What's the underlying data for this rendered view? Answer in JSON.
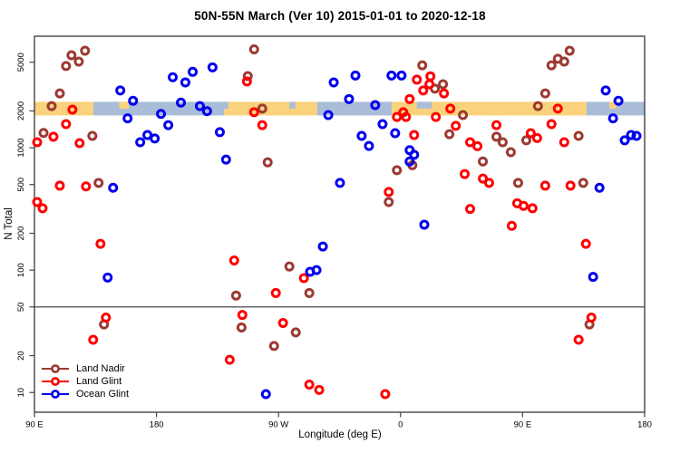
{
  "chart_data": {
    "type": "scatter",
    "title": "50N-55N March (Ver 10)   2015-01-01 to 2020-12-18",
    "xlabel": "Longitude (deg E)",
    "ylabel": "N Total",
    "x_axis": {
      "range": [
        90,
        540
      ],
      "ticks": [
        90,
        180,
        270,
        360,
        450,
        540
      ],
      "tick_labels": [
        "90 E",
        "180",
        "90 W",
        "0",
        "90 E",
        "180"
      ],
      "note": "longitude axis spans 450 degrees eastward from 90E through 180, 90W, 0, 90E to 180"
    },
    "y_axis": {
      "scale": "log",
      "range": [
        6.9,
        8150
      ],
      "ticks": [
        10,
        20,
        50,
        100,
        200,
        500,
        1000,
        2000,
        5000
      ],
      "tick_labels": [
        "10",
        "20",
        "50",
        "100",
        "200",
        "500",
        "1000",
        "2000",
        "5000"
      ]
    },
    "grid": false,
    "reference_line_y": 50,
    "land_ocean_strip": {
      "center_value": 2000,
      "land_color": "#FAD27B",
      "ocean_color": "#A9BDD9",
      "segments": [
        {
          "from": 90,
          "to": 133.5,
          "type": "land"
        },
        {
          "from": 133.5,
          "to": 230,
          "type": "ocean"
        },
        {
          "from": 230,
          "to": 298.5,
          "type": "land"
        },
        {
          "from": 298.5,
          "to": 353.5,
          "type": "ocean"
        },
        {
          "from": 353.5,
          "to": 497,
          "type": "land"
        },
        {
          "from": 497,
          "to": 540,
          "type": "ocean"
        }
      ],
      "patches": [
        {
          "from": 152.5,
          "to": 159.5,
          "type": "land",
          "half": "top"
        },
        {
          "from": 514,
          "to": 519,
          "type": "land",
          "half": "top"
        },
        {
          "from": 372,
          "to": 383,
          "type": "ocean",
          "half": "top"
        },
        {
          "from": 278,
          "to": 282.5,
          "type": "ocean",
          "half": "top"
        },
        {
          "from": 227,
          "to": 233,
          "type": "ocean",
          "half": "top"
        }
      ]
    },
    "legend_position": "bottom-left",
    "series": [
      {
        "name": "Land Nadir",
        "color": "#9C3A32",
        "points": [
          [
            117.3,
            5700
          ],
          [
            127.3,
            6200
          ],
          [
            122.7,
            5060
          ],
          [
            113.3,
            4650
          ],
          [
            108.7,
            2780
          ],
          [
            102.7,
            2190
          ],
          [
            96.7,
            1320
          ],
          [
            132.7,
            1250
          ],
          [
            137.3,
            516
          ],
          [
            141.3,
            36
          ],
          [
            252,
            6370
          ],
          [
            247.3,
            3850
          ],
          [
            258,
            2090
          ],
          [
            262,
            760
          ],
          [
            278,
            107
          ],
          [
            238.7,
            62
          ],
          [
            292.7,
            65
          ],
          [
            242.7,
            34
          ],
          [
            282.7,
            31
          ],
          [
            266.7,
            24
          ],
          [
            376,
            4710
          ],
          [
            391.3,
            3300
          ],
          [
            385.3,
            3040
          ],
          [
            406,
            1850
          ],
          [
            396,
            1290
          ],
          [
            368.7,
            720
          ],
          [
            357.3,
            655
          ],
          [
            420.7,
            772
          ],
          [
            351.3,
            360
          ],
          [
            476,
            5330
          ],
          [
            484.7,
            6200
          ],
          [
            471.3,
            4710
          ],
          [
            480.7,
            5060
          ],
          [
            466.7,
            2780
          ],
          [
            461.3,
            2190
          ],
          [
            430.7,
            1230
          ],
          [
            435.3,
            1110
          ],
          [
            452.7,
            1150
          ],
          [
            491.3,
            1250
          ],
          [
            441.3,
            920
          ],
          [
            446.7,
            516
          ],
          [
            494.7,
            516
          ],
          [
            499.3,
            36
          ]
        ]
      },
      {
        "name": "Land Glint",
        "color": "#FF0000",
        "points": [
          [
            118,
            2050
          ],
          [
            113.3,
            1560
          ],
          [
            104,
            1230
          ],
          [
            92,
            1110
          ],
          [
            123.3,
            1090
          ],
          [
            108.7,
            490
          ],
          [
            128,
            483
          ],
          [
            92,
            360
          ],
          [
            96,
            320
          ],
          [
            138.7,
            164
          ],
          [
            142.7,
            41
          ],
          [
            133.3,
            27
          ],
          [
            246.7,
            3480
          ],
          [
            252,
            1950
          ],
          [
            258,
            1530
          ],
          [
            237.3,
            120
          ],
          [
            288.7,
            86
          ],
          [
            268,
            65
          ],
          [
            243.3,
            43
          ],
          [
            273.3,
            37
          ],
          [
            234,
            18.5
          ],
          [
            292.7,
            11.6
          ],
          [
            300,
            10.5
          ],
          [
            372,
            3600
          ],
          [
            382,
            3830
          ],
          [
            381.3,
            3300
          ],
          [
            376.7,
            2940
          ],
          [
            392,
            2780
          ],
          [
            366.7,
            2500
          ],
          [
            362,
            1950
          ],
          [
            357.3,
            1785
          ],
          [
            364,
            1785
          ],
          [
            386,
            1785
          ],
          [
            396.7,
            2090
          ],
          [
            400.7,
            1510
          ],
          [
            370,
            1270
          ],
          [
            411.3,
            1110
          ],
          [
            416.7,
            1030
          ],
          [
            407.3,
            610
          ],
          [
            420.7,
            560
          ],
          [
            425.3,
            516
          ],
          [
            351.3,
            435
          ],
          [
            411.3,
            316
          ],
          [
            348.7,
            9.7
          ],
          [
            476,
            2090
          ],
          [
            471.3,
            1560
          ],
          [
            430.7,
            1530
          ],
          [
            456,
            1316
          ],
          [
            460.7,
            1200
          ],
          [
            480.7,
            1110
          ],
          [
            466.7,
            490
          ],
          [
            485.3,
            490
          ],
          [
            446,
            352
          ],
          [
            450.7,
            335
          ],
          [
            457.3,
            320
          ],
          [
            442,
            230
          ],
          [
            496.7,
            164
          ],
          [
            500.7,
            41
          ],
          [
            491.3,
            27
          ]
        ]
      },
      {
        "name": "Ocean Glint",
        "color": "#0000EE",
        "points": [
          [
            192,
            3770
          ],
          [
            201.3,
            3420
          ],
          [
            153.3,
            2940
          ],
          [
            162.7,
            2420
          ],
          [
            198,
            2340
          ],
          [
            183.3,
            1890
          ],
          [
            158.7,
            1740
          ],
          [
            188.7,
            1530
          ],
          [
            168,
            1110
          ],
          [
            173.3,
            1270
          ],
          [
            178.7,
            1190
          ],
          [
            148,
            471
          ],
          [
            144,
            87
          ],
          [
            221.3,
            4540
          ],
          [
            206.7,
            4170
          ],
          [
            310.7,
            3420
          ],
          [
            212,
            2190
          ],
          [
            217.3,
            1990
          ],
          [
            306.7,
            1850
          ],
          [
            226.7,
            1340
          ],
          [
            231.3,
            800
          ],
          [
            315.3,
            516
          ],
          [
            302.7,
            156
          ],
          [
            293.3,
            97
          ],
          [
            298,
            100
          ],
          [
            260.7,
            9.7
          ],
          [
            326.7,
            3890
          ],
          [
            353.3,
            3890
          ],
          [
            360.7,
            3890
          ],
          [
            322,
            2500
          ],
          [
            341.3,
            2230
          ],
          [
            346.7,
            1560
          ],
          [
            356,
            1316
          ],
          [
            331.3,
            1250
          ],
          [
            336.7,
            1034
          ],
          [
            366.7,
            955
          ],
          [
            370,
            875
          ],
          [
            366.7,
            772
          ],
          [
            377.5,
            235
          ],
          [
            511.3,
            2940
          ],
          [
            520.7,
            2420
          ],
          [
            516.7,
            1740
          ],
          [
            525.3,
            1150
          ],
          [
            530,
            1270
          ],
          [
            534,
            1250
          ],
          [
            506.7,
            471
          ],
          [
            502,
            88
          ]
        ]
      }
    ]
  }
}
